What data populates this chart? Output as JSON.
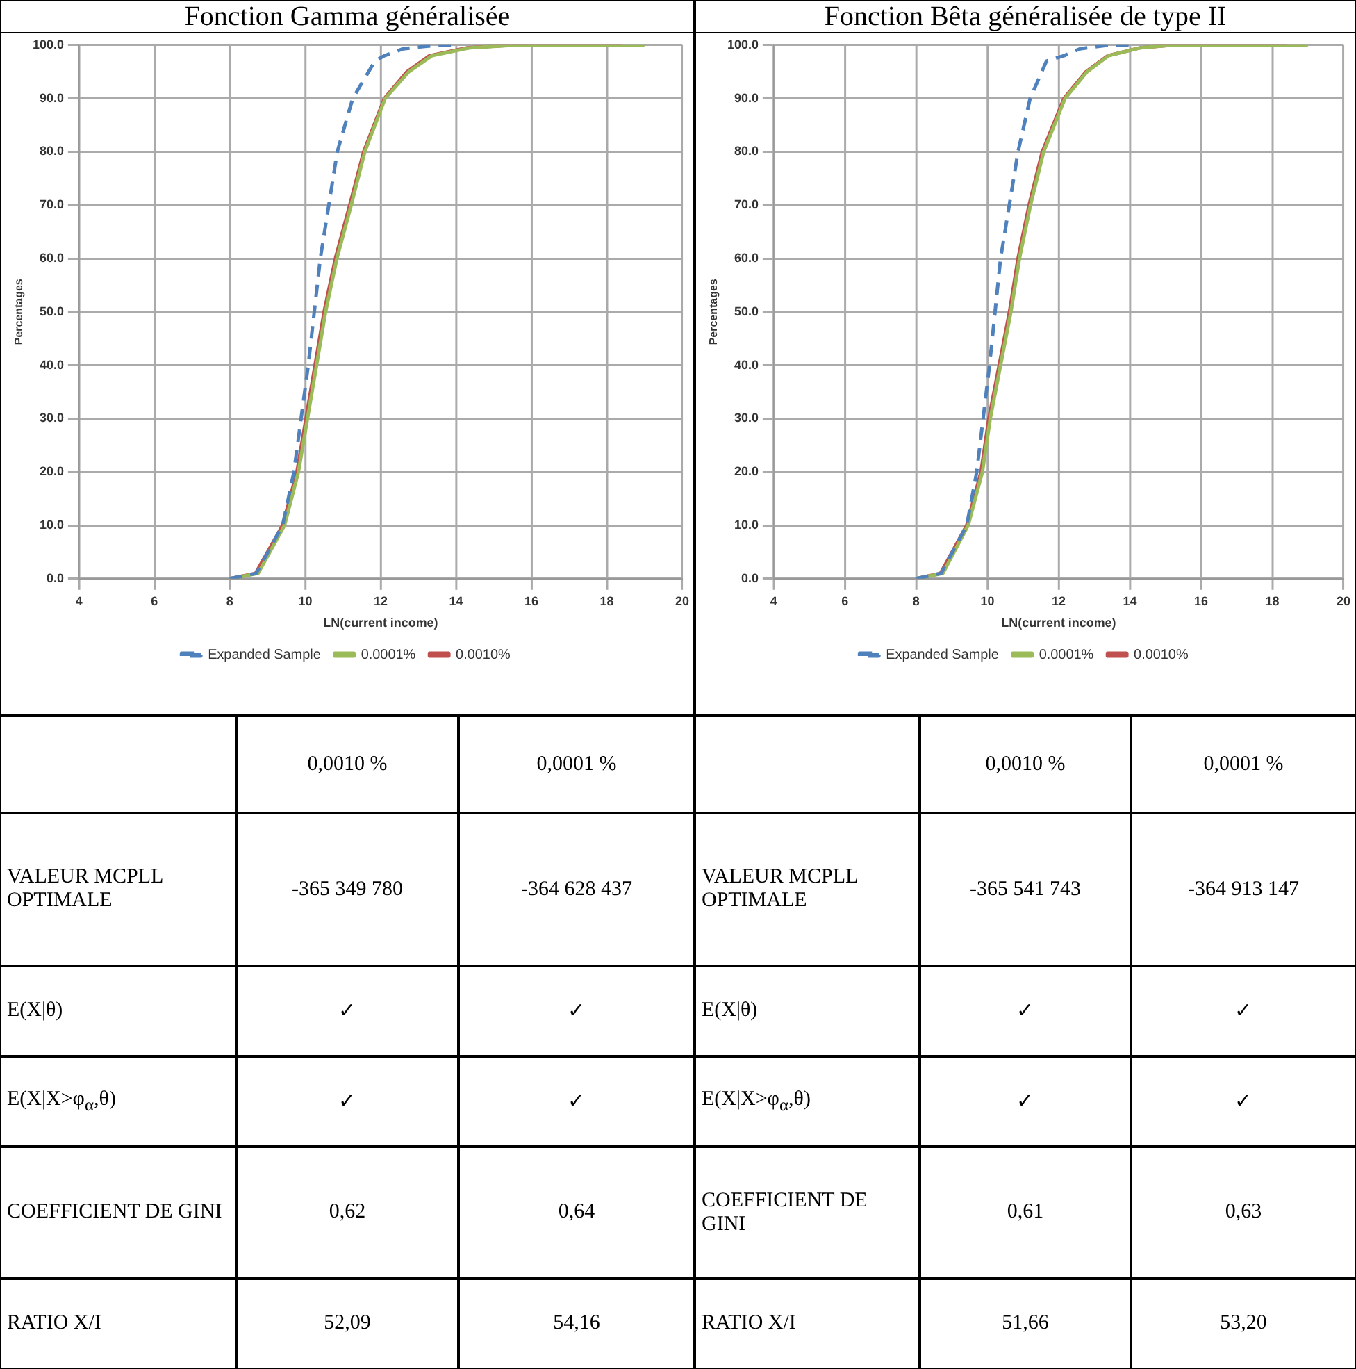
{
  "chart_data": [
    {
      "type": "line",
      "title": "Fonction Gamma généralisée",
      "xlabel": "LN(current income)",
      "ylabel": "Percentages",
      "xlim": [
        4,
        20
      ],
      "xticks": [
        4,
        6,
        8,
        10,
        12,
        14,
        16,
        18,
        20
      ],
      "ylim": [
        0,
        100
      ],
      "yticks": [
        {
          "value": 0,
          "label": "0.0"
        },
        {
          "value": 10,
          "label": "10.0"
        },
        {
          "value": 20,
          "label": "20.0"
        },
        {
          "value": 30,
          "label": "30.0"
        },
        {
          "value": 40,
          "label": "40.0"
        },
        {
          "value": 50,
          "label": "50.0"
        },
        {
          "value": 60,
          "label": "60.0"
        },
        {
          "value": 70,
          "label": "70.0"
        },
        {
          "value": 80,
          "label": "80.0"
        },
        {
          "value": 90,
          "label": "90.0"
        },
        {
          "value": 100,
          "label": "100.0"
        }
      ],
      "grid": true,
      "legend": "bottom",
      "marker": "none",
      "series": [
        {
          "name": "Expanded Sample",
          "color": "#4f81bd",
          "line_style": "dashed",
          "x": [
            8,
            8.7,
            9.4,
            9.7,
            10.08,
            10.4,
            10.85,
            11.26,
            11.85,
            12.1,
            12.6,
            13.5,
            14
          ],
          "values": [
            0,
            1,
            10,
            20,
            40,
            60,
            80,
            90,
            97,
            98,
            99.3,
            100,
            100
          ]
        },
        {
          "name": "0.0001%",
          "color": "#9bbb59",
          "line_style": "solid",
          "x": [
            8,
            8.75,
            9.45,
            9.82,
            10.06,
            10.54,
            10.84,
            11.22,
            11.58,
            12.12,
            12.75,
            13.36,
            14.38,
            15.6,
            19
          ],
          "values": [
            0,
            1,
            10,
            20,
            30,
            50,
            60,
            70,
            80,
            90,
            95,
            98,
            99.5,
            100,
            100
          ]
        },
        {
          "name": "0.0010%",
          "color": "#c0504d",
          "line_style": "solid",
          "x": [
            8,
            8.68,
            9.4,
            9.78,
            10.02,
            10.5,
            10.8,
            11.18,
            11.55,
            12.1,
            12.7,
            13.3,
            14.3,
            15.5,
            18.4
          ],
          "values": [
            0,
            1,
            10,
            20,
            30,
            50,
            60,
            70,
            80,
            90,
            95,
            98,
            99.5,
            100,
            100
          ]
        }
      ]
    },
    {
      "type": "line",
      "title": "Fonction Bêta généralisée de type II",
      "xlabel": "LN(current income)",
      "ylabel": "Percentages",
      "xlim": [
        4,
        20
      ],
      "xticks": [
        4,
        6,
        8,
        10,
        12,
        14,
        16,
        18,
        20
      ],
      "ylim": [
        0,
        100
      ],
      "yticks": [
        {
          "value": 0,
          "label": "0.0"
        },
        {
          "value": 10,
          "label": "10.0"
        },
        {
          "value": 20,
          "label": "20.0"
        },
        {
          "value": 30,
          "label": "30.0"
        },
        {
          "value": 40,
          "label": "40.0"
        },
        {
          "value": 50,
          "label": "50.0"
        },
        {
          "value": 60,
          "label": "60.0"
        },
        {
          "value": 70,
          "label": "70.0"
        },
        {
          "value": 80,
          "label": "80.0"
        },
        {
          "value": 90,
          "label": "90.0"
        },
        {
          "value": 100,
          "label": "100.0"
        }
      ],
      "grid": true,
      "legend": "bottom",
      "marker": "none",
      "series": [
        {
          "name": "Expanded Sample",
          "color": "#4f81bd",
          "line_style": "dashed",
          "x": [
            8,
            8.7,
            9.42,
            9.7,
            10.06,
            10.37,
            10.86,
            11.2,
            11.66,
            12.15,
            12.6,
            13.4,
            14
          ],
          "values": [
            0,
            1,
            10,
            20,
            40,
            60,
            80,
            90,
            97,
            98,
            99.3,
            100,
            100
          ]
        },
        {
          "name": "0.0001%",
          "color": "#9bbb59",
          "line_style": "solid",
          "x": [
            8,
            8.75,
            9.46,
            9.86,
            10.08,
            10.66,
            10.9,
            11.21,
            11.58,
            12.18,
            12.8,
            13.4,
            14.3,
            15.2,
            19
          ],
          "values": [
            0,
            1,
            10,
            20,
            30,
            50,
            60,
            70,
            80,
            90,
            95,
            98,
            99.5,
            100,
            100
          ]
        },
        {
          "name": "0.0010%",
          "color": "#c0504d",
          "line_style": "solid",
          "x": [
            8,
            8.68,
            9.42,
            9.82,
            10.04,
            10.62,
            10.86,
            11.17,
            11.54,
            12.15,
            12.77,
            13.38,
            14.3,
            15.2,
            18.4
          ],
          "values": [
            0,
            1,
            10,
            20,
            30,
            50,
            60,
            70,
            80,
            90,
            95,
            98,
            99.5,
            100,
            100
          ]
        }
      ]
    },
    {
      "type": "other",
      "annotations": [
        "0,0010 %",
        "0,0001 %",
        "VALEUR MCPLL OPTIMALE",
        "-365 349 780",
        "-364 628 437",
        "E(X|θ)",
        "✓",
        "✓",
        "E(X|X>φ$_{α}$,θ)",
        "✓",
        "✓",
        "COEFFICIENT DE GINI",
        "0,62",
        "0,64",
        "RATIO X/I",
        "52,09",
        "54,16"
      ]
    },
    {
      "type": "other",
      "annotations": [
        "0,0010 %",
        "0,0001 %",
        "VALEUR MCPLL OPTIMALE",
        "-365 541 743",
        "-364 913 147",
        "E(X|θ)",
        "✓",
        "✓",
        "E(X|X>φ$_{α}$,θ)",
        "✓",
        "✓",
        "COEFFICIENT DE GINI",
        "0,61",
        "0,63",
        "RATIO X/I",
        "51,66",
        "53,20"
      ]
    }
  ]
}
